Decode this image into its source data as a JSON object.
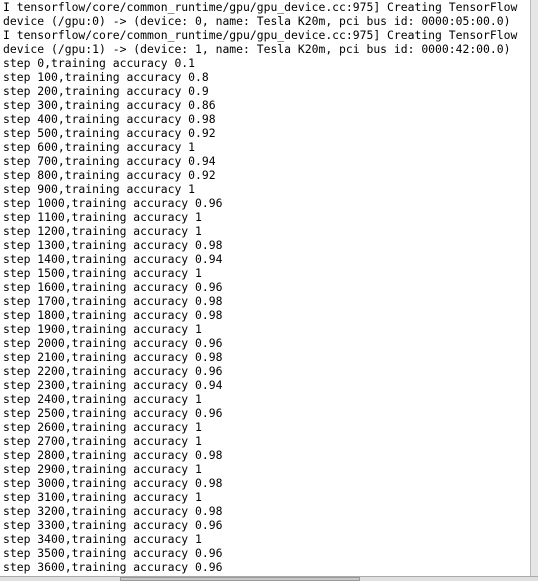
{
  "terminal": {
    "lines": [
      "I tensorflow/core/common_runtime/gpu/gpu_device.cc:975] Creating TensorFlow",
      "device (/gpu:0) -> (device: 0, name: Tesla K20m, pci bus id: 0000:05:00.0)",
      "I tensorflow/core/common_runtime/gpu/gpu_device.cc:975] Creating TensorFlow",
      "device (/gpu:1) -> (device: 1, name: Tesla K20m, pci bus id: 0000:42:00.0)",
      "step 0,training accuracy 0.1",
      "step 100,training accuracy 0.8",
      "step 200,training accuracy 0.9",
      "step 300,training accuracy 0.86",
      "step 400,training accuracy 0.98",
      "step 500,training accuracy 0.92",
      "step 600,training accuracy 1",
      "step 700,training accuracy 0.94",
      "step 800,training accuracy 0.92",
      "step 900,training accuracy 1",
      "step 1000,training accuracy 0.96",
      "step 1100,training accuracy 1",
      "step 1200,training accuracy 1",
      "step 1300,training accuracy 0.98",
      "step 1400,training accuracy 0.94",
      "step 1500,training accuracy 1",
      "step 1600,training accuracy 0.96",
      "step 1700,training accuracy 0.98",
      "step 1800,training accuracy 0.98",
      "step 1900,training accuracy 1",
      "step 2000,training accuracy 0.96",
      "step 2100,training accuracy 0.98",
      "step 2200,training accuracy 0.96",
      "step 2300,training accuracy 0.94",
      "step 2400,training accuracy 1",
      "step 2500,training accuracy 0.96",
      "step 2600,training accuracy 1",
      "step 2700,training accuracy 1",
      "step 2800,training accuracy 0.98",
      "step 2900,training accuracy 1",
      "step 3000,training accuracy 0.98",
      "step 3100,training accuracy 1",
      "step 3200,training accuracy 0.98",
      "step 3300,training accuracy 0.96",
      "step 3400,training accuracy 1",
      "step 3500,training accuracy 0.96",
      "step 3600,training accuracy 0.96"
    ]
  }
}
